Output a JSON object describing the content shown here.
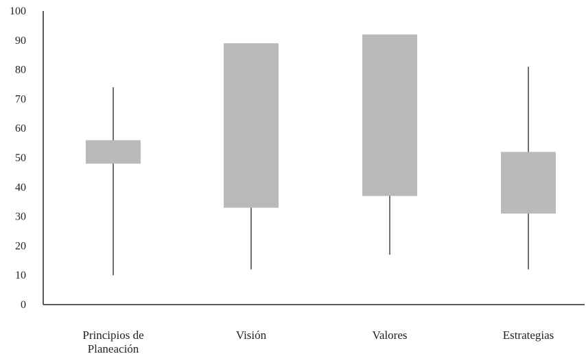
{
  "chart_data": {
    "type": "boxplot",
    "title": "",
    "xlabel": "",
    "ylabel": "",
    "ylim": [
      0,
      100
    ],
    "yticks": [
      0,
      10,
      20,
      30,
      40,
      50,
      60,
      70,
      80,
      90,
      100
    ],
    "grid": false,
    "legend": "none",
    "colors": {
      "box": "#b9babc",
      "whisker": "#6f6f6f",
      "axis": "#222222"
    },
    "categories": [
      {
        "label_lines": [
          "Principios de",
          "Planeación"
        ],
        "min": 10,
        "q1": 48,
        "q3": 56,
        "max": 74
      },
      {
        "label_lines": [
          "Visión"
        ],
        "min": 12,
        "q1": 33,
        "q3": 89,
        "max": 89
      },
      {
        "label_lines": [
          "Valores"
        ],
        "min": 17,
        "q1": 37,
        "q3": 92,
        "max": 92
      },
      {
        "label_lines": [
          "Estrategias"
        ],
        "min": 12,
        "q1": 31,
        "q3": 52,
        "max": 81
      }
    ]
  }
}
